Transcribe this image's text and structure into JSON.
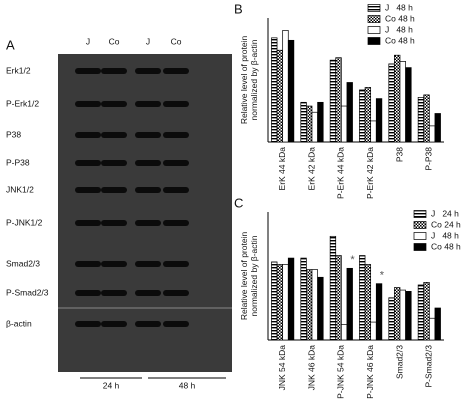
{
  "blot": {
    "panel": "A",
    "lanes": [
      "J",
      "Co",
      "J",
      "Co"
    ],
    "groups": [
      "24 h",
      "48 h"
    ],
    "rows": [
      "Erk1/2",
      "P-Erk1/2",
      "P38",
      "P-P38",
      "JNK1/2",
      "P-JNK1/2",
      "Smad2/3",
      "P-Smad2/3",
      "β-actin"
    ]
  },
  "chart_data": [
    {
      "type": "bar",
      "panel": "B",
      "ylabel": "Relative level of protein\nnormalized by β-actin",
      "categories": [
        "ErK 44 kDa",
        "ErK 42 kDa",
        "P-ErK 44 kDa",
        "P-ErK 42 kDa",
        "P38",
        "P-P38"
      ],
      "ylim": [
        0,
        1
      ],
      "series": [
        {
          "name": "J   48 h",
          "pattern": "hlines",
          "values": [
            0.84,
            0.32,
            0.66,
            0.42,
            0.63,
            0.36
          ]
        },
        {
          "name": "Co 48 h",
          "pattern": "checker",
          "values": [
            0.74,
            0.29,
            0.68,
            0.44,
            0.7,
            0.38
          ]
        },
        {
          "name": "J   48 h",
          "pattern": "white",
          "values": [
            0.9,
            0.24,
            0.29,
            0.17,
            0.65,
            0.13
          ]
        },
        {
          "name": "Co 48 h",
          "pattern": "black",
          "values": [
            0.82,
            0.32,
            0.48,
            0.35,
            0.6,
            0.23
          ]
        }
      ]
    },
    {
      "type": "bar",
      "panel": "C",
      "ylabel": "Relative level of protein\nnormalized by β-actin",
      "categories": [
        "JNK 54 kDa",
        "JNK 46 kDa",
        "P-JNK 54 kDa",
        "P-JNK 46 kDa",
        "Smad2/3",
        "P-Smad2/3"
      ],
      "ylim": [
        0,
        1
      ],
      "annotations": [
        "*",
        "*"
      ],
      "series": [
        {
          "name": "J   24 h",
          "pattern": "hlines",
          "values": [
            0.61,
            0.64,
            0.81,
            0.66,
            0.33,
            0.43
          ]
        },
        {
          "name": "Co 24 h",
          "pattern": "checker",
          "values": [
            0.59,
            0.55,
            0.66,
            0.59,
            0.41,
            0.45
          ]
        },
        {
          "name": "J   48 h",
          "pattern": "white",
          "values": [
            0.59,
            0.55,
            0.12,
            0.14,
            0.39,
            0.17
          ]
        },
        {
          "name": "Co 48 h",
          "pattern": "black",
          "values": [
            0.64,
            0.49,
            0.56,
            0.44,
            0.38,
            0.25
          ]
        }
      ]
    }
  ]
}
